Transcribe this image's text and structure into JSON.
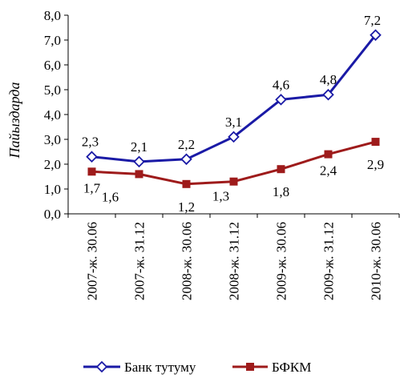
{
  "chart_data": {
    "type": "line",
    "title": "",
    "xlabel": "",
    "ylabel": "Пайыздарда",
    "ylim": [
      0,
      8
    ],
    "yticks": [
      "0,0",
      "1,0",
      "2,0",
      "3,0",
      "4,0",
      "5,0",
      "6,0",
      "7,0",
      "8,0"
    ],
    "categories": [
      "2007-ж. 30.06",
      "2007-ж. 31.12",
      "2008-ж. 30.06",
      "2008-ж. 31.12",
      "2009-ж. 30.06",
      "2009-ж. 31.12",
      "2010-ж. 30.06"
    ],
    "grid": false,
    "legend_position": "bottom",
    "series": [
      {
        "name": "Банк тутуму",
        "color": "#1a1aa6",
        "marker": "diamond-open",
        "values": [
          2.3,
          2.1,
          2.2,
          3.1,
          4.6,
          4.8,
          7.2
        ],
        "labels": [
          "2,3",
          "2,1",
          "2,2",
          "3,1",
          "4,6",
          "4,8",
          "7,2"
        ]
      },
      {
        "name": "БФКМ",
        "color": "#9e1b1b",
        "marker": "square-filled",
        "values": [
          1.7,
          1.6,
          1.2,
          1.3,
          1.8,
          2.4,
          2.9
        ],
        "labels": [
          "1,7",
          "1,6",
          "1,2",
          "1,3",
          "1,8",
          "2,4",
          "2,9"
        ]
      }
    ]
  }
}
